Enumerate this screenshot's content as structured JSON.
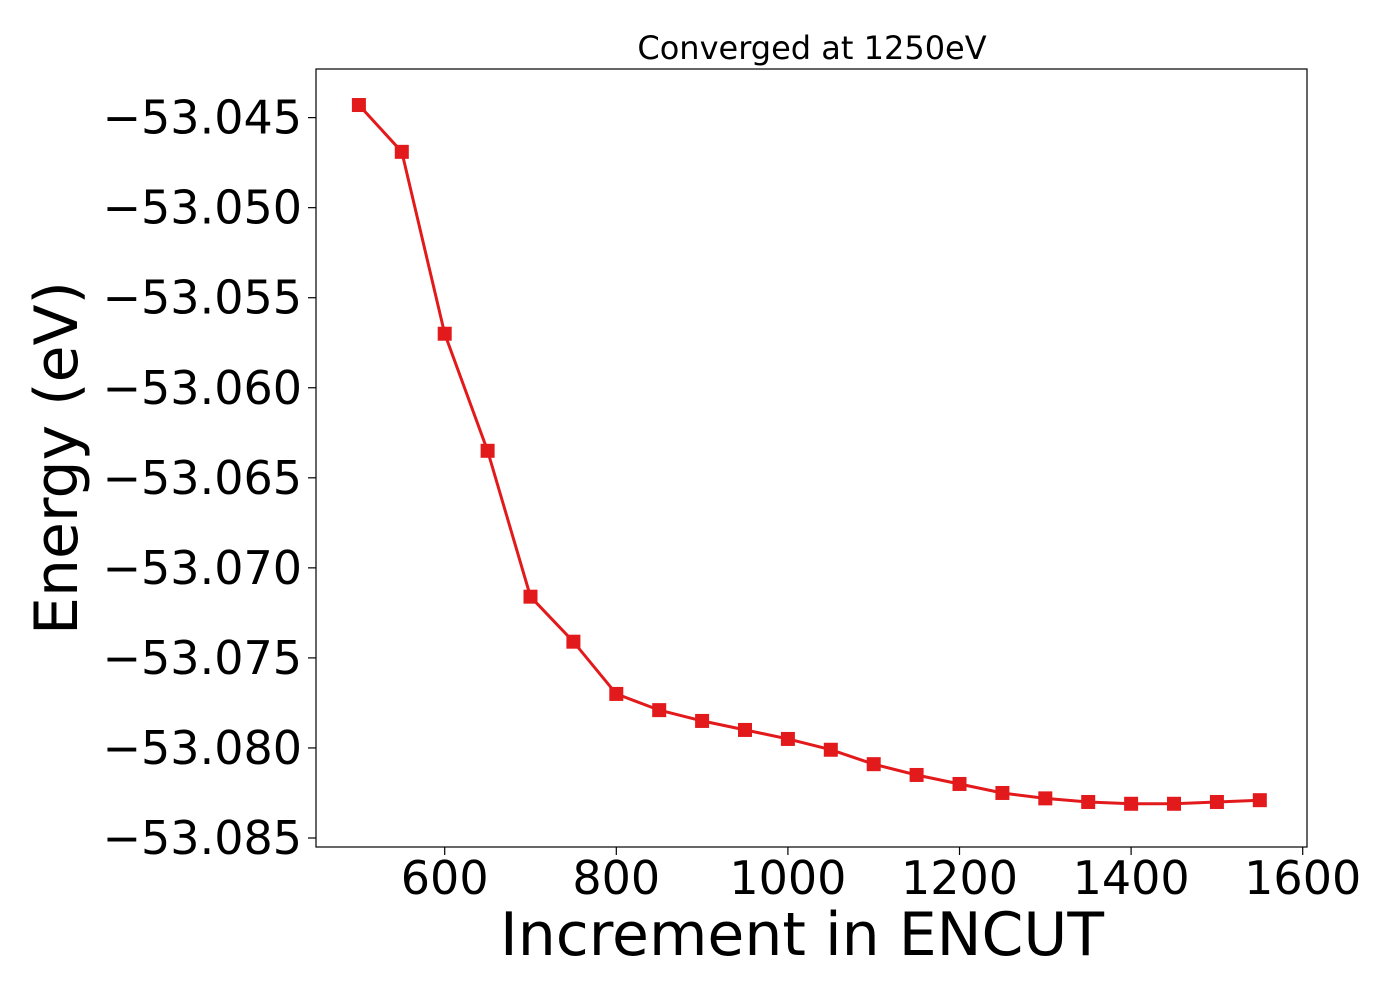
{
  "chart_data": {
    "type": "line",
    "title": "Converged at 1250eV",
    "xlabel": "Increment in ENCUT",
    "ylabel": "Energy (eV)",
    "xlim": [
      450,
      1605
    ],
    "ylim": [
      -53.0855,
      -53.0423
    ],
    "xticks": [
      600,
      800,
      1000,
      1200,
      1400,
      1600
    ],
    "xtick_labels": [
      "600",
      "800",
      "1000",
      "1200",
      "1400",
      "1600"
    ],
    "yticks": [
      -53.045,
      -53.05,
      -53.055,
      -53.06,
      -53.065,
      -53.07,
      -53.075,
      -53.08,
      -53.085
    ],
    "ytick_labels": [
      "−53.045",
      "−53.050",
      "−53.055",
      "−53.060",
      "−53.065",
      "−53.070",
      "−53.075",
      "−53.080",
      "−53.085"
    ],
    "grid": false,
    "legend": "none",
    "series": [
      {
        "color": "#e31a1c",
        "marker": "square",
        "x": [
          500,
          550,
          600,
          650,
          700,
          750,
          800,
          850,
          900,
          950,
          1000,
          1050,
          1100,
          1150,
          1200,
          1250,
          1300,
          1350,
          1400,
          1450,
          1500,
          1550
        ],
        "y": [
          -53.0443,
          -53.0469,
          -53.057,
          -53.0635,
          -53.0716,
          -53.0741,
          -53.077,
          -53.0779,
          -53.0785,
          -53.079,
          -53.0795,
          -53.0801,
          -53.0809,
          -53.0815,
          -53.082,
          -53.0825,
          -53.0828,
          -53.083,
          -53.0831,
          -53.0831,
          -53.083,
          -53.0829
        ]
      }
    ]
  }
}
